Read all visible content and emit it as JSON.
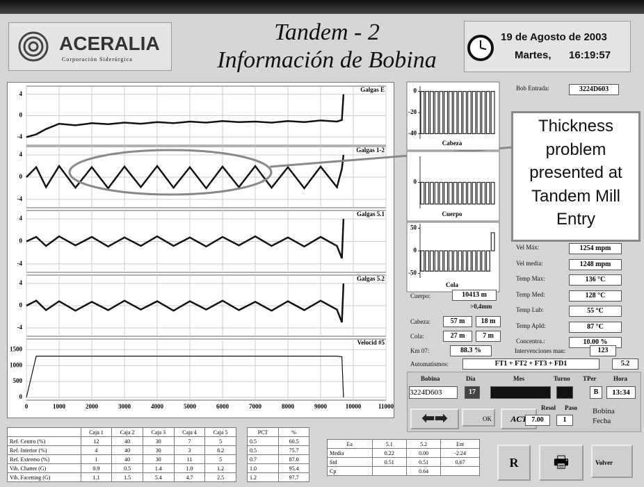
{
  "header": {
    "logo_name": "ACERALIA",
    "logo_sub": "Corporación Siderúrgica",
    "title_1": "Tandem - 2",
    "title_2": "Información de Bobina",
    "date": "19 de Agosto de 2003",
    "weekday": "Martes,",
    "time": "16:19:57"
  },
  "gauges": {
    "type": "line",
    "xlim": [
      0,
      11000
    ],
    "xticks": [
      0,
      1000,
      2000,
      3000,
      4000,
      5000,
      6000,
      7000,
      8000,
      9000,
      10000,
      11000
    ],
    "x": [
      0,
      300,
      600,
      1000,
      1500,
      2000,
      2500,
      3000,
      3500,
      4000,
      4500,
      5000,
      5500,
      6000,
      6500,
      7000,
      7500,
      8000,
      8500,
      9000,
      9500,
      9650,
      9700
    ],
    "charts": [
      {
        "label": "Galgas E",
        "ylim": [
          -5,
          5
        ],
        "yticks": [
          4,
          0,
          -4
        ],
        "values": [
          -4,
          -3.5,
          -2.5,
          -1.5,
          -1.8,
          -1.4,
          -1.6,
          -1.3,
          -1.5,
          -1.2,
          -1.4,
          -1.1,
          -1.3,
          -1.0,
          -1.2,
          -1.1,
          -1.3,
          -1.0,
          -1.2,
          -0.9,
          -1.1,
          -0.8,
          4
        ]
      },
      {
        "label": "Galgas 1-2",
        "ylim": [
          -5,
          5
        ],
        "yticks": [
          4,
          0,
          -4
        ],
        "values": [
          0,
          1.8,
          -1.8,
          2,
          -1.9,
          1.8,
          -2,
          1.9,
          -1.8,
          2,
          -1.9,
          1.8,
          -2,
          1.9,
          -1.8,
          2,
          -1.9,
          1.8,
          -2,
          1.9,
          -1.8,
          1.5,
          4
        ]
      },
      {
        "label": "Galgas 5.1",
        "ylim": [
          -5,
          5
        ],
        "yticks": [
          4,
          0,
          -4
        ],
        "values": [
          0,
          0.8,
          -0.8,
          0.9,
          -0.7,
          0.8,
          -0.9,
          0.7,
          -0.8,
          0.9,
          -0.8,
          0.7,
          -0.9,
          0.8,
          -0.7,
          0.9,
          -0.8,
          0.7,
          -0.9,
          0.8,
          -0.8,
          -3,
          4
        ]
      },
      {
        "label": "Galgas 5.2",
        "ylim": [
          -5,
          5
        ],
        "yticks": [
          4,
          0,
          -4
        ],
        "values": [
          0,
          0.9,
          -0.8,
          0.8,
          -0.9,
          0.7,
          -0.8,
          0.9,
          -0.7,
          0.8,
          -0.9,
          0.8,
          -0.7,
          0.9,
          -0.8,
          0.7,
          -0.9,
          0.8,
          -0.8,
          0.9,
          -0.7,
          -3,
          4
        ]
      },
      {
        "label": "Velocid #5",
        "ylim": [
          0,
          1750
        ],
        "yticks": [
          1500,
          1000,
          500,
          0
        ],
        "values": [
          0,
          1300,
          1300,
          1300,
          1300,
          1300,
          1300,
          1300,
          1300,
          1300,
          1300,
          1300,
          1300,
          1300,
          1300,
          1300,
          1300,
          1300,
          1300,
          1300,
          1300,
          1280,
          0
        ]
      }
    ]
  },
  "profiles": [
    {
      "type": "bar",
      "label": "Cabeza",
      "ylim": [
        -45,
        5
      ],
      "yticks": [
        0,
        -20,
        -40
      ],
      "values": [
        -40,
        -40,
        -40,
        -40,
        -40,
        -40,
        -40,
        -40,
        -40,
        -40,
        -40,
        -40,
        -40,
        -40,
        -40,
        -40
      ]
    },
    {
      "type": "bar",
      "label": "Cuerpo",
      "ylim": [
        -30,
        30
      ],
      "yticks": [
        0
      ],
      "values": [
        -25,
        -25,
        -25,
        -25,
        -25,
        -25,
        -25,
        -25,
        -25,
        -25,
        -25,
        -25,
        -25,
        -25,
        -25,
        -25
      ]
    },
    {
      "type": "bar",
      "label": "Cola",
      "ylim": [
        -60,
        60
      ],
      "yticks": [
        50,
        0,
        -50
      ],
      "values": [
        -45,
        -45,
        -45,
        -45,
        -45,
        -45,
        -45,
        -45,
        -45,
        -45,
        -45,
        -45,
        -45,
        -45,
        -45,
        40
      ]
    }
  ],
  "callout": "Thickness problem presented at Tandem Mill Entry",
  "coil_in": {
    "label": "Bob Entrada:",
    "value": "3224D603"
  },
  "stats_right": [
    {
      "label": "Vel Máx:",
      "value": "1254 mpm"
    },
    {
      "label": "Vel media:",
      "value": "1248 mpm"
    },
    {
      "label": "Temp Max:",
      "value": "136 °C"
    },
    {
      "label": "Temp Med:",
      "value": "128 °C"
    },
    {
      "label": "Temp Lub:",
      "value": "55 °C"
    },
    {
      "label": "Temp Apld:",
      "value": "87 °C"
    },
    {
      "label": "Concentra.:",
      "value": "10.00 %"
    }
  ],
  "interventions": {
    "label": "Intervenciones man:",
    "value": "123"
  },
  "lengths": {
    "cuerpo_label": "Cuerpo:",
    "cuerpo": "10413 m",
    "threshold": ">0,4mm",
    "cabeza_label": "Cabeza:",
    "cabeza_1": "57 m",
    "cabeza_2": "18 m",
    "cola_label": "Cola:",
    "cola_1": "27 m",
    "cola_2": "7 m",
    "km_label": "Km 07:",
    "km": "88.3 %"
  },
  "automation": {
    "label": "Automatismos:",
    "value": "FT1 + FT2 + FT3 + FD1",
    "extra": "5.2"
  },
  "controls": {
    "headers": [
      "Bobina",
      "Día",
      "Mes",
      "Turno",
      "TPer",
      "Hora"
    ],
    "bobina": "3224D603",
    "dia": "17",
    "tper": "B",
    "hora": "13:34",
    "ok": "OK",
    "act": "ACT",
    "resol_label": "Resol",
    "resol": "7.00",
    "paso_label": "Paso",
    "paso": "1",
    "radio_1": "Bobina",
    "radio_2": "Fecha"
  },
  "table": {
    "header": [
      "",
      "Caja 1",
      "Caja 2",
      "Caja 3",
      "Caja 4",
      "Caja 5"
    ],
    "rows": [
      [
        "Ref. Centro (%)",
        "12",
        "40",
        "30",
        "7",
        "5"
      ],
      [
        "Ref. Interior (%)",
        "4",
        "40",
        "30",
        "3",
        "8.2"
      ],
      [
        "Ref. Extremo (%)",
        "1",
        "40",
        "30",
        "11",
        "5"
      ],
      [
        "Vib. Chatter (G)",
        "0.9",
        "0.5",
        "1.4",
        "1.0",
        "1.2"
      ],
      [
        "Vib. Facetting (G)",
        "1.1",
        "1.5",
        "5.4",
        "4.7",
        "2.5"
      ]
    ]
  },
  "pct_table": {
    "header": [
      "PCT",
      "%"
    ],
    "rows": [
      [
        "0.5",
        "60.5"
      ],
      [
        "0.5",
        "75.7"
      ],
      [
        "0.7",
        "87.0"
      ],
      [
        "1.0",
        "95.4"
      ],
      [
        "1.2",
        "97.7"
      ]
    ]
  },
  "stats_table": {
    "header": [
      "Ea",
      "5.1",
      "5.2",
      "Ent"
    ],
    "rows": [
      [
        "Media",
        "0.22",
        "0.00",
        "-2.24"
      ],
      [
        "Std",
        "0.51",
        "0.51",
        "0.67"
      ],
      [
        "Cp",
        "",
        "0.64",
        ""
      ]
    ]
  },
  "buttons": {
    "r": "R",
    "volver": "Volver"
  }
}
